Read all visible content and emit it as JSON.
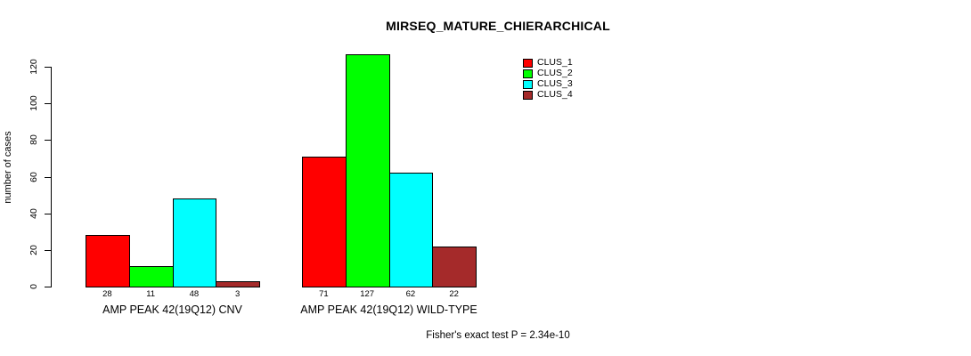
{
  "chart_data": {
    "type": "bar",
    "title": "MIRSEQ_MATURE_CHIERARCHICAL",
    "xlabel": "",
    "ylabel": "number of cases",
    "ylim": [
      0,
      120
    ],
    "yticks": [
      0,
      20,
      40,
      60,
      80,
      100,
      120
    ],
    "grid": false,
    "bar_value_labels": true,
    "categories": [
      "AMP PEAK 42(19Q12) CNV",
      "AMP PEAK 42(19Q12) WILD-TYPE"
    ],
    "series": [
      {
        "name": "CLUS_1",
        "color": "#ff0000",
        "values": [
          28,
          71
        ]
      },
      {
        "name": "CLUS_2",
        "color": "#00ff00",
        "values": [
          11,
          127
        ]
      },
      {
        "name": "CLUS_3",
        "color": "#00ffff",
        "values": [
          48,
          62
        ]
      },
      {
        "name": "CLUS_4",
        "color": "#a52a2a",
        "values": [
          3,
          22
        ]
      }
    ],
    "legend": {
      "position": "top-right",
      "entries": [
        "CLUS_1",
        "CLUS_2",
        "CLUS_3",
        "CLUS_4"
      ]
    },
    "annotation": "Fisher's exact test P = 2.34e-10"
  }
}
